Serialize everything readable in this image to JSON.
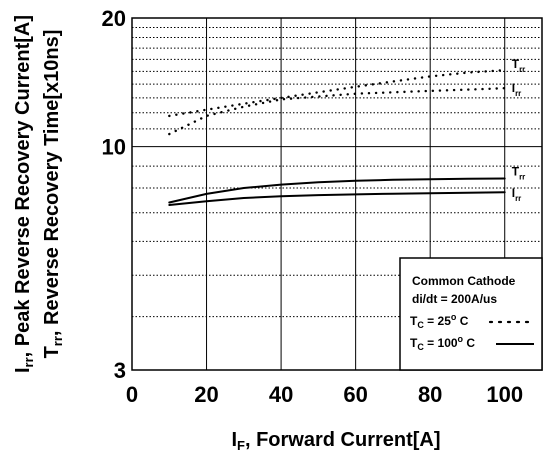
{
  "chart_data": {
    "type": "line",
    "xlabel": {
      "main": "I",
      "sub": "F",
      "rest": ", Forward Current[A]"
    },
    "ylabel": [
      {
        "main": "I",
        "sub": "rr",
        "rest": ", Peak Reverse Recovery Current[A]"
      },
      {
        "main": "T",
        "sub": "rr",
        "rest": ", Reverse Recovery Time[x10ns]"
      }
    ],
    "xlim": [
      0,
      110
    ],
    "ylim": [
      3,
      20
    ],
    "yscale": "log",
    "xticks": [
      0,
      20,
      40,
      60,
      80,
      100
    ],
    "xtick_labels": [
      "0",
      "20",
      "40",
      "60",
      "80",
      "100"
    ],
    "yticks": [
      3,
      10,
      20
    ],
    "ytick_labels": [
      "3",
      "10",
      "20"
    ],
    "grid": true,
    "series": [
      {
        "label": {
          "main": "T",
          "sub": "rr"
        },
        "style": "dotted",
        "x": [
          10,
          20,
          30,
          40,
          50,
          60,
          70,
          80,
          90,
          100
        ],
        "y": [
          11.8,
          12.2,
          12.6,
          13.0,
          13.4,
          13.8,
          14.2,
          14.6,
          14.9,
          15.1
        ]
      },
      {
        "label": {
          "main": "I",
          "sub": "rr"
        },
        "style": "dotted",
        "x": [
          10,
          20,
          30,
          40,
          50,
          60,
          70,
          80,
          90,
          100
        ],
        "y": [
          10.7,
          11.8,
          12.4,
          12.9,
          13.1,
          13.3,
          13.4,
          13.5,
          13.6,
          13.7
        ]
      },
      {
        "label": {
          "main": "T",
          "sub": "rr"
        },
        "style": "solid",
        "x": [
          10,
          20,
          30,
          40,
          50,
          60,
          70,
          80,
          90,
          100
        ],
        "y": [
          7.4,
          7.75,
          8.0,
          8.15,
          8.25,
          8.32,
          8.36,
          8.39,
          8.41,
          8.42
        ]
      },
      {
        "label": {
          "main": "I",
          "sub": "rr"
        },
        "style": "solid",
        "x": [
          10,
          20,
          30,
          40,
          50,
          60,
          70,
          80,
          90,
          100
        ],
        "y": [
          7.3,
          7.45,
          7.58,
          7.65,
          7.7,
          7.73,
          7.76,
          7.78,
          7.8,
          7.82
        ]
      }
    ],
    "legend": {
      "placement": "bottom-right",
      "title": "Common Cathode",
      "subtitle": "di/dt = 200A/us",
      "entries": [
        {
          "main": "T",
          "sub": "C",
          "value": " =  25",
          "sup": "o",
          "unit": " C",
          "style": "dotted"
        },
        {
          "main": "T",
          "sub": "C",
          "value": " = 100",
          "sup": "o",
          "unit": " C",
          "style": "solid"
        }
      ]
    }
  }
}
